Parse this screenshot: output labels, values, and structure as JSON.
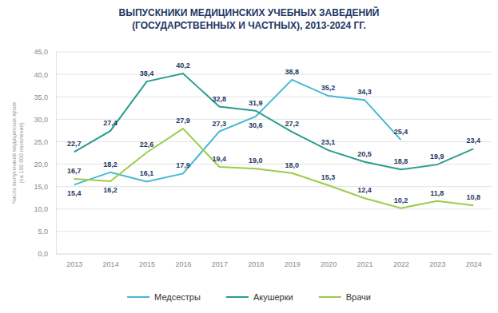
{
  "chart_data": {
    "type": "line",
    "title": "ВЫПУСКНИКИ МЕДИЦИНСКИХ УЧЕБНЫХ ЗАВЕДЕНИЙ\n(ГОСУДАРСТВЕННЫХ И ЧАСТНЫХ), 2013-2024 ГГ.",
    "y_label": "Число выпускников медицинских вузов\n(на 100 000 населения)",
    "categories": [
      "2013",
      "2014",
      "2015",
      "2016",
      "2017",
      "2018",
      "2019",
      "2020",
      "2021",
      "2022",
      "2023",
      "2024"
    ],
    "series": [
      {
        "name": "Медсестры",
        "color": "#45b8d4",
        "values": [
          15.4,
          18.2,
          16.1,
          17.9,
          27.3,
          30.6,
          38.8,
          35.2,
          34.3,
          25.4,
          null,
          null
        ],
        "value_labels": [
          "15,4",
          "18,2",
          "16,1",
          "17,9",
          "27,3",
          "30,6",
          "38,8",
          "35,2",
          "34,3",
          "25,4",
          null,
          null
        ]
      },
      {
        "name": "Акушерки",
        "color": "#2a9d8c",
        "values": [
          22.7,
          27.4,
          38.4,
          40.2,
          32.8,
          31.9,
          27.2,
          23.1,
          20.5,
          18.8,
          19.9,
          23.4
        ],
        "value_labels": [
          "22,7",
          "27,4",
          "38,4",
          "40,2",
          "32,8",
          "31,9",
          "27,2",
          "23,1",
          "20,5",
          "18,8",
          "19,9",
          "23,4"
        ]
      },
      {
        "name": "Врачи",
        "color": "#9acd4a",
        "values": [
          16.7,
          16.2,
          22.6,
          27.9,
          19.4,
          19.0,
          18.0,
          15.3,
          12.4,
          10.2,
          11.8,
          10.8
        ],
        "value_labels": [
          "16,7",
          "16,2",
          "22,6",
          "27,9",
          "19,4",
          "19,0",
          "18,0",
          "15,3",
          "12,4",
          "10,2",
          "11,8",
          "10,8"
        ]
      }
    ],
    "ylim": [
      0,
      45
    ],
    "yticks": [
      {
        "value": 0,
        "label": "0,0"
      },
      {
        "value": 5,
        "label": "5,0"
      },
      {
        "value": 10,
        "label": "10,0"
      },
      {
        "value": 15,
        "label": "15,0"
      },
      {
        "value": 20,
        "label": "20,0"
      },
      {
        "value": 25,
        "label": "25,0"
      },
      {
        "value": 30,
        "label": "30,0"
      },
      {
        "value": 35,
        "label": "35,0"
      },
      {
        "value": 40,
        "label": "40,0"
      },
      {
        "value": 45,
        "label": "45,0"
      }
    ],
    "grid": true,
    "data_labels": true,
    "legend": "bottom"
  }
}
